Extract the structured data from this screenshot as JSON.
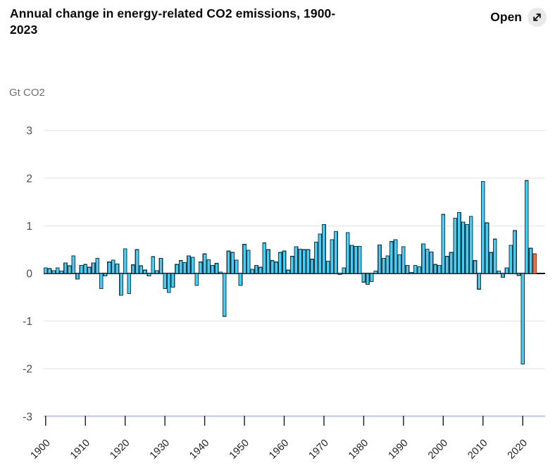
{
  "header": {
    "title": "Annual change in energy-related CO2 emissions, 1900-2023",
    "title_line1": "Annual change in energy-related CO2 emissions, 1900-",
    "title_line2": "2023",
    "open_label": "Open",
    "open_icon": "expand-diagonal-arrow"
  },
  "chart_data": {
    "type": "bar",
    "title": "Annual change in energy-related CO2 emissions, 1900-2023",
    "unit_label": "Gt CO2",
    "x_start_year": 1900,
    "x_end_year": 2023,
    "x_tick_labels": [
      "1900",
      "1910",
      "1920",
      "1930",
      "1940",
      "1950",
      "1960",
      "1970",
      "1980",
      "1990",
      "2000",
      "2010",
      "2020"
    ],
    "y_ticks": [
      "3",
      "2",
      "1",
      "0",
      "-1",
      "-2",
      "-3"
    ],
    "ylim": [
      -3,
      3
    ],
    "grid": "horizontal",
    "legend": "none",
    "colors": {
      "bar_fill": "#47CEF4",
      "bar_stroke": "#1F3A47",
      "highlight_fill": "#F06F44",
      "highlight_stroke": "#83402A",
      "zero_line": "#141414",
      "gridline": "#E8E8EB",
      "axis_line": "#C9D1E0",
      "tick_mark": "#1A1A1A",
      "y_label": "#4C4C4C",
      "unit_label": "#707070",
      "x_label": "#1F1F1F",
      "open_icon_bg": "#E9E9E9"
    },
    "highlight_year": 2023,
    "values": [
      0.12,
      0.1,
      0.06,
      0.12,
      0.05,
      0.22,
      0.16,
      0.37,
      -0.12,
      0.17,
      0.19,
      0.13,
      0.22,
      0.32,
      -0.32,
      -0.05,
      0.24,
      0.28,
      0.2,
      -0.46,
      0.52,
      -0.42,
      0.18,
      0.5,
      0.16,
      0.07,
      -0.05,
      0.35,
      0.06,
      0.32,
      -0.32,
      -0.4,
      -0.29,
      0.19,
      0.27,
      0.23,
      0.37,
      0.34,
      -0.25,
      0.24,
      0.41,
      0.29,
      0.17,
      0.21,
      0.03,
      -0.9,
      0.47,
      0.44,
      0.28,
      -0.25,
      0.61,
      0.49,
      0.09,
      0.17,
      0.13,
      0.64,
      0.5,
      0.27,
      0.24,
      0.44,
      0.47,
      0.07,
      0.36,
      0.56,
      0.51,
      0.5,
      0.5,
      0.3,
      0.66,
      0.83,
      1.03,
      0.26,
      0.71,
      0.88,
      -0.02,
      0.12,
      0.86,
      0.59,
      0.57,
      0.57,
      -0.18,
      -0.23,
      -0.17,
      0.05,
      0.6,
      0.32,
      0.37,
      0.67,
      0.71,
      0.39,
      0.56,
      0.17,
      0.02,
      0.17,
      0.14,
      0.62,
      0.51,
      0.45,
      0.19,
      0.17,
      1.24,
      0.36,
      0.44,
      1.16,
      1.28,
      1.08,
      1.03,
      1.2,
      0.27,
      -0.33,
      1.93,
      1.06,
      0.44,
      0.72,
      0.05,
      -0.08,
      0.12,
      0.59,
      0.9,
      -0.04,
      -1.9,
      1.95,
      0.53,
      0.41
    ]
  }
}
